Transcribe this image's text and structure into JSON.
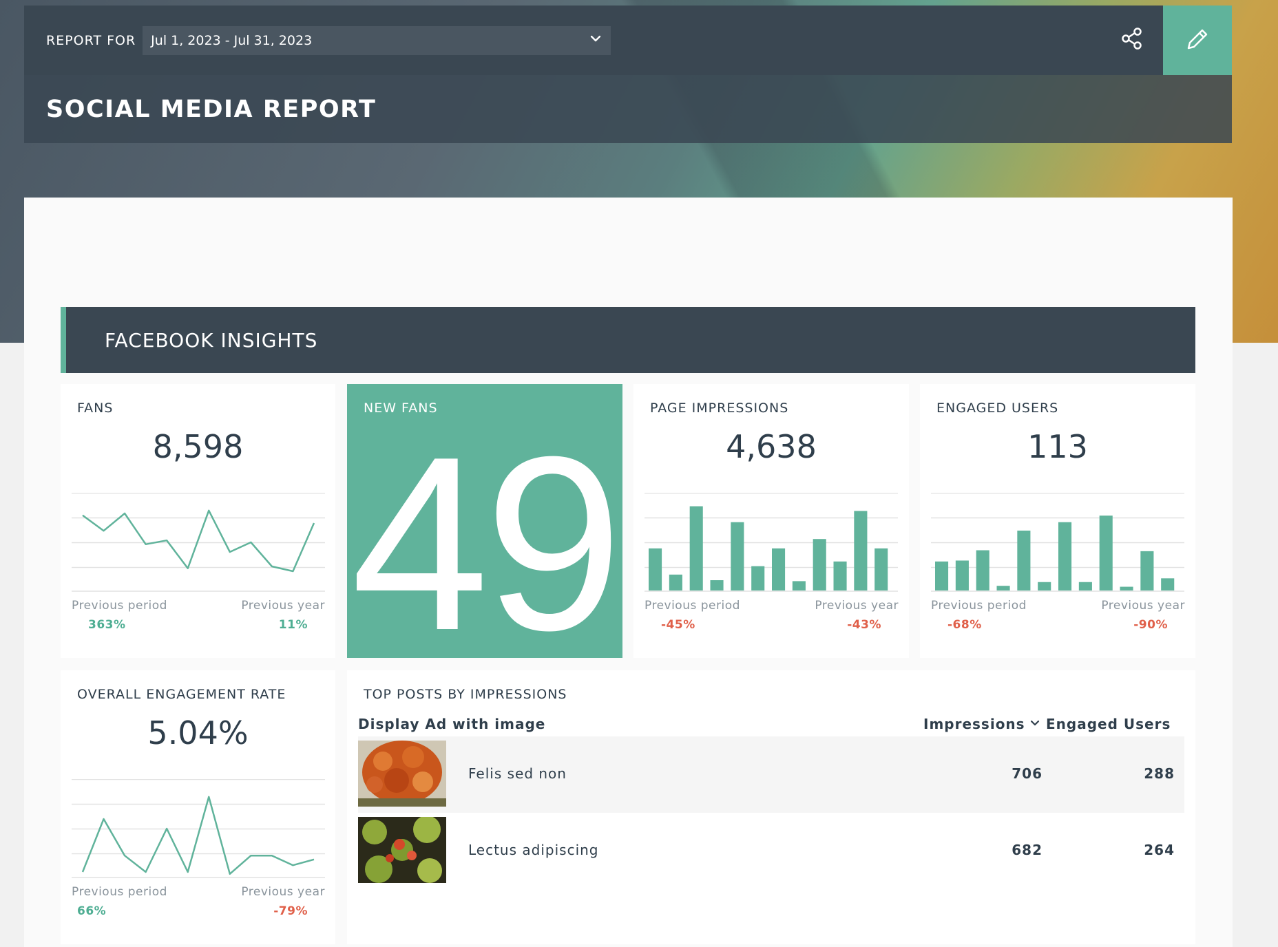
{
  "header": {
    "report_for_label": "REPORT FOR",
    "date_range": "Jul 1, 2023 - Jul 31, 2023",
    "title": "SOCIAL MEDIA REPORT"
  },
  "section": {
    "title": "FACEBOOK INSIGHTS"
  },
  "kpis": {
    "fans": {
      "title": "FANS",
      "value": "8,598",
      "prev_period_label": "Previous period",
      "prev_period": "363%",
      "prev_year_label": "Previous year",
      "prev_year": "11%",
      "trend": [
        78,
        62,
        80,
        48,
        52,
        23,
        83,
        40,
        50,
        25,
        20,
        70
      ]
    },
    "new_fans": {
      "title": "NEW FANS",
      "value": "49"
    },
    "page_impressions": {
      "title": "PAGE IMPRESSIONS",
      "value": "4,638",
      "prev_period_label": "Previous period",
      "prev_period": "-45%",
      "prev_year_label": "Previous year",
      "prev_year": "-43%",
      "bars": [
        45,
        17,
        90,
        11,
        73,
        26,
        45,
        10,
        55,
        31,
        85,
        45
      ]
    },
    "engaged_users": {
      "title": "ENGAGED USERS",
      "value": "113",
      "prev_period_label": "Previous period",
      "prev_period": "-68%",
      "prev_year_label": "Previous year",
      "prev_year": "-90%",
      "bars": [
        31,
        32,
        43,
        5,
        64,
        9,
        73,
        9,
        80,
        4,
        42,
        13
      ]
    },
    "engagement_rate": {
      "title": "OVERALL ENGAGEMENT RATE",
      "value": "5.04%",
      "prev_period_label": "Previous period",
      "prev_period": "66%",
      "prev_year_label": "Previous year",
      "prev_year": "-79%",
      "trend": [
        5,
        60,
        22,
        5,
        50,
        5,
        83,
        3,
        22,
        22,
        12,
        18
      ]
    }
  },
  "top_posts": {
    "title": "TOP POSTS BY IMPRESSIONS",
    "subtitle": "Display Ad with image",
    "col_impressions": "Impressions",
    "col_engaged": "Engaged Users",
    "rows": [
      {
        "label": "Felis sed non",
        "impressions": "706",
        "engaged": "288",
        "thumb": "autumn-tree-icon"
      },
      {
        "label": "Lectus adipiscing",
        "impressions": "682",
        "engaged": "264",
        "thumb": "leaves-icon"
      }
    ]
  },
  "colors": {
    "accent": "#60b39b",
    "dark": "#3a4752",
    "positive": "#4fae93",
    "negative": "#e0604a"
  }
}
